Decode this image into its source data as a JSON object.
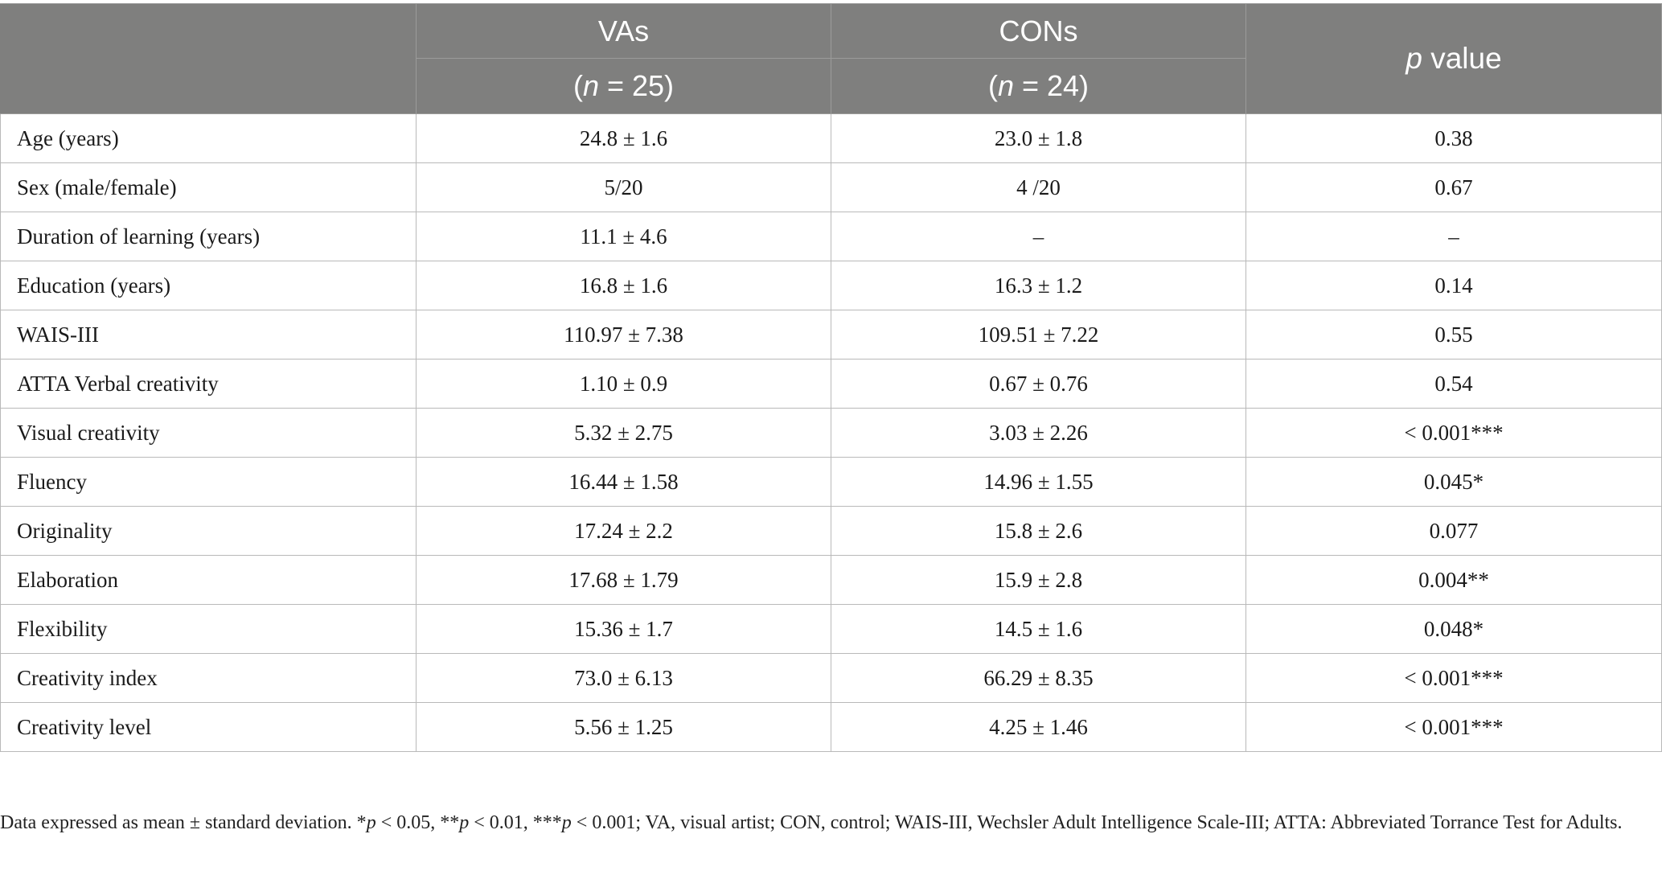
{
  "table": {
    "header": {
      "group1": "VAs",
      "group1_n": "(n = 25)",
      "group1_n_parts": [
        "(",
        "n",
        " = 25)"
      ],
      "group2": "CONs",
      "group2_n": "(n = 24)",
      "group2_n_parts": [
        "(",
        "n",
        " = 24)"
      ],
      "pvalue_label": "p value",
      "pvalue_parts": [
        "p",
        " value"
      ]
    },
    "rows": [
      {
        "label": "Age (years)",
        "va": "24.8 ± 1.6",
        "con": "23.0 ± 1.8",
        "p": "0.38"
      },
      {
        "label": "Sex (male/female)",
        "va": "5/20",
        "con": "4 /20",
        "p": "0.67"
      },
      {
        "label": "Duration of learning (years)",
        "va": "11.1 ± 4.6",
        "con": "–",
        "p": "–"
      },
      {
        "label": "Education (years)",
        "va": "16.8 ± 1.6",
        "con": "16.3 ± 1.2",
        "p": "0.14"
      },
      {
        "label": "WAIS-III",
        "va": "110.97 ± 7.38",
        "con": "109.51 ± 7.22",
        "p": "0.55"
      },
      {
        "label": "ATTA Verbal creativity",
        "va": "1.10 ± 0.9",
        "con": "0.67 ± 0.76",
        "p": "0.54"
      },
      {
        "label": "Visual creativity",
        "va": "5.32 ± 2.75",
        "con": "3.03 ± 2.26",
        "p": "< 0.001***"
      },
      {
        "label": "Fluency",
        "va": "16.44 ± 1.58",
        "con": "14.96 ± 1.55",
        "p": "0.045*"
      },
      {
        "label": "Originality",
        "va": "17.24 ± 2.2",
        "con": "15.8 ± 2.6",
        "p": "0.077"
      },
      {
        "label": "Elaboration",
        "va": "17.68 ± 1.79",
        "con": "15.9 ± 2.8",
        "p": "0.004**"
      },
      {
        "label": "Flexibility",
        "va": "15.36 ± 1.7",
        "con": "14.5 ± 1.6",
        "p": "0.048*"
      },
      {
        "label": "Creativity index",
        "va": "73.0 ± 6.13",
        "con": "66.29 ± 8.35",
        "p": "< 0.001***"
      },
      {
        "label": "Creativity level",
        "va": "5.56 ± 1.25",
        "con": "4.25 ± 1.46",
        "p": "< 0.001***"
      }
    ]
  },
  "footnote": {
    "text": "Data expressed as mean ± standard deviation. *p < 0.05, **p < 0.01, ***p < 0.001; VA, visual artist; CON, control; WAIS-III, Wechsler Adult Intelligence Scale-III; ATTA: Abbreviated Torrance Test for Adults.",
    "parts": [
      {
        "t": "Data expressed as mean ± standard deviation. *",
        "i": false
      },
      {
        "t": "p",
        "i": true
      },
      {
        "t": " < 0.05, **",
        "i": false
      },
      {
        "t": "p",
        "i": true
      },
      {
        "t": " < 0.01, ***",
        "i": false
      },
      {
        "t": "p",
        "i": true
      },
      {
        "t": " < 0.001; VA, visual artist; CON, control; WAIS-III, Wechsler Adult Intelligence Scale-III; ATTA: Abbreviated Torrance Test for Adults.",
        "i": false
      }
    ]
  }
}
